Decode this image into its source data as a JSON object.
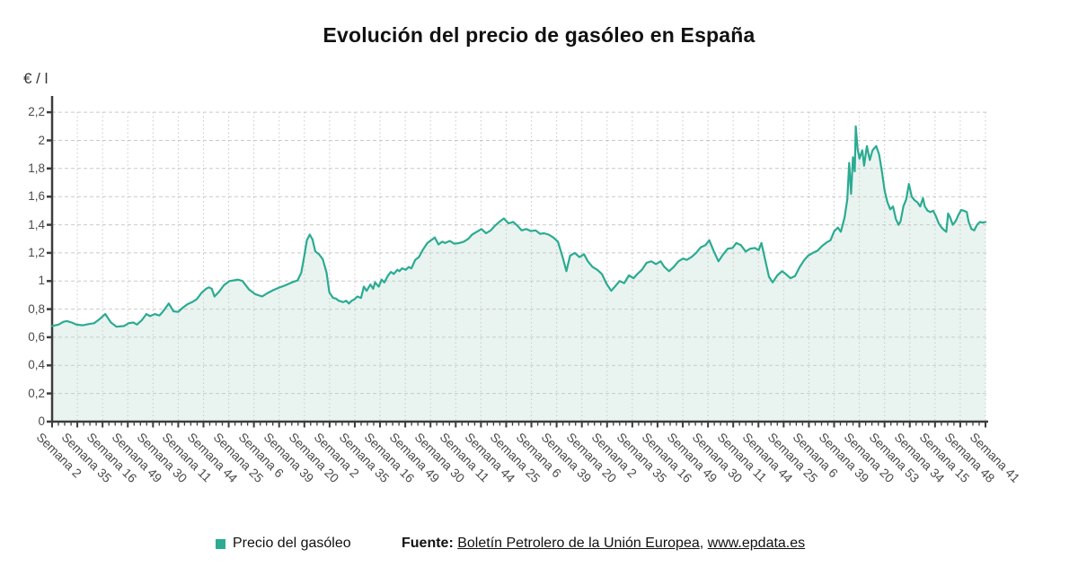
{
  "chart_data": {
    "type": "area",
    "title": "Evolución del precio de gasóleo en España",
    "ylabel": "€ / l",
    "ylim": [
      0,
      2.2
    ],
    "grid": true,
    "legend_position": "bottom",
    "y_ticks": [
      0,
      0.2,
      0.4,
      0.6,
      0.8,
      1,
      1.2,
      1.4,
      1.6,
      1.8,
      2,
      2.2
    ],
    "y_ticklabels": [
      "0",
      "0,2",
      "0,4",
      "0,6",
      "0,8",
      "1",
      "1,2",
      "1,4",
      "1,6",
      "1,8",
      "2",
      "2,2"
    ],
    "x_ticklabels": [
      "Semana 2",
      "Semana 35",
      "Semana 16",
      "Semana 49",
      "Semana 30",
      "Semana 11",
      "Semana 44",
      "Semana 25",
      "Semana 6",
      "Semana 39",
      "Semana 20",
      "Semana 2",
      "Semana 35",
      "Semana 16",
      "Semana 49",
      "Semana 30",
      "Semana 11",
      "Semana 44",
      "Semana 25",
      "Semana 6",
      "Semana 39",
      "Semana 20",
      "Semana 2",
      "Semana 35",
      "Semana 16",
      "Semana 49",
      "Semana 30",
      "Semana 11",
      "Semana 44",
      "Semana 25",
      "Semana 6",
      "Semana 39",
      "Semana 20",
      "Semana 53",
      "Semana 34",
      "Semana 15",
      "Semana 48",
      "Semana 41"
    ],
    "series": [
      {
        "name": "Precio del gasóleo",
        "color": "#2BAB92",
        "fill": "#E9F4F0",
        "points": [
          [
            0.0,
            0.68
          ],
          [
            0.007,
            0.69
          ],
          [
            0.012,
            0.71
          ],
          [
            0.016,
            0.715
          ],
          [
            0.021,
            0.705
          ],
          [
            0.026,
            0.69
          ],
          [
            0.033,
            0.685
          ],
          [
            0.04,
            0.695
          ],
          [
            0.045,
            0.7
          ],
          [
            0.05,
            0.725
          ],
          [
            0.057,
            0.765
          ],
          [
            0.063,
            0.705
          ],
          [
            0.069,
            0.675
          ],
          [
            0.077,
            0.68
          ],
          [
            0.082,
            0.7
          ],
          [
            0.087,
            0.705
          ],
          [
            0.091,
            0.69
          ],
          [
            0.096,
            0.72
          ],
          [
            0.101,
            0.765
          ],
          [
            0.105,
            0.75
          ],
          [
            0.11,
            0.765
          ],
          [
            0.115,
            0.755
          ],
          [
            0.119,
            0.785
          ],
          [
            0.125,
            0.84
          ],
          [
            0.13,
            0.785
          ],
          [
            0.135,
            0.78
          ],
          [
            0.14,
            0.81
          ],
          [
            0.145,
            0.835
          ],
          [
            0.15,
            0.85
          ],
          [
            0.155,
            0.87
          ],
          [
            0.16,
            0.915
          ],
          [
            0.165,
            0.945
          ],
          [
            0.168,
            0.955
          ],
          [
            0.171,
            0.945
          ],
          [
            0.174,
            0.89
          ],
          [
            0.179,
            0.925
          ],
          [
            0.184,
            0.97
          ],
          [
            0.19,
            1.0
          ],
          [
            0.195,
            1.005
          ],
          [
            0.199,
            1.01
          ],
          [
            0.204,
            1.0
          ],
          [
            0.211,
            0.94
          ],
          [
            0.218,
            0.905
          ],
          [
            0.225,
            0.89
          ],
          [
            0.231,
            0.915
          ],
          [
            0.237,
            0.935
          ],
          [
            0.244,
            0.955
          ],
          [
            0.25,
            0.97
          ],
          [
            0.257,
            0.99
          ],
          [
            0.263,
            1.005
          ],
          [
            0.267,
            1.06
          ],
          [
            0.27,
            1.17
          ],
          [
            0.273,
            1.29
          ],
          [
            0.276,
            1.33
          ],
          [
            0.279,
            1.295
          ],
          [
            0.282,
            1.21
          ],
          [
            0.286,
            1.19
          ],
          [
            0.29,
            1.155
          ],
          [
            0.294,
            1.06
          ],
          [
            0.297,
            0.92
          ],
          [
            0.301,
            0.88
          ],
          [
            0.304,
            0.875
          ],
          [
            0.307,
            0.86
          ],
          [
            0.312,
            0.85
          ],
          [
            0.315,
            0.86
          ],
          [
            0.318,
            0.84
          ],
          [
            0.321,
            0.86
          ],
          [
            0.324,
            0.87
          ],
          [
            0.327,
            0.89
          ],
          [
            0.331,
            0.88
          ],
          [
            0.334,
            0.96
          ],
          [
            0.337,
            0.93
          ],
          [
            0.341,
            0.975
          ],
          [
            0.344,
            0.945
          ],
          [
            0.346,
            0.99
          ],
          [
            0.35,
            0.96
          ],
          [
            0.353,
            1.01
          ],
          [
            0.356,
            0.99
          ],
          [
            0.36,
            1.04
          ],
          [
            0.363,
            1.065
          ],
          [
            0.366,
            1.05
          ],
          [
            0.37,
            1.08
          ],
          [
            0.372,
            1.07
          ],
          [
            0.375,
            1.09
          ],
          [
            0.379,
            1.08
          ],
          [
            0.382,
            1.1
          ],
          [
            0.385,
            1.09
          ],
          [
            0.389,
            1.15
          ],
          [
            0.393,
            1.17
          ],
          [
            0.397,
            1.22
          ],
          [
            0.402,
            1.27
          ],
          [
            0.41,
            1.31
          ],
          [
            0.414,
            1.26
          ],
          [
            0.418,
            1.28
          ],
          [
            0.421,
            1.27
          ],
          [
            0.426,
            1.285
          ],
          [
            0.431,
            1.265
          ],
          [
            0.436,
            1.27
          ],
          [
            0.441,
            1.28
          ],
          [
            0.446,
            1.3
          ],
          [
            0.45,
            1.33
          ],
          [
            0.455,
            1.35
          ],
          [
            0.46,
            1.37
          ],
          [
            0.465,
            1.34
          ],
          [
            0.47,
            1.36
          ],
          [
            0.474,
            1.39
          ],
          [
            0.479,
            1.42
          ],
          [
            0.484,
            1.445
          ],
          [
            0.489,
            1.41
          ],
          [
            0.494,
            1.42
          ],
          [
            0.499,
            1.39
          ],
          [
            0.503,
            1.36
          ],
          [
            0.508,
            1.37
          ],
          [
            0.513,
            1.355
          ],
          [
            0.518,
            1.36
          ],
          [
            0.523,
            1.335
          ],
          [
            0.527,
            1.34
          ],
          [
            0.532,
            1.33
          ],
          [
            0.537,
            1.31
          ],
          [
            0.542,
            1.28
          ],
          [
            0.547,
            1.17
          ],
          [
            0.551,
            1.07
          ],
          [
            0.555,
            1.18
          ],
          [
            0.56,
            1.2
          ],
          [
            0.565,
            1.17
          ],
          [
            0.57,
            1.19
          ],
          [
            0.574,
            1.14
          ],
          [
            0.579,
            1.1
          ],
          [
            0.584,
            1.08
          ],
          [
            0.589,
            1.05
          ],
          [
            0.594,
            0.98
          ],
          [
            0.599,
            0.93
          ],
          [
            0.603,
            0.96
          ],
          [
            0.608,
            1.0
          ],
          [
            0.613,
            0.985
          ],
          [
            0.618,
            1.04
          ],
          [
            0.623,
            1.02
          ],
          [
            0.627,
            1.05
          ],
          [
            0.632,
            1.08
          ],
          [
            0.637,
            1.13
          ],
          [
            0.642,
            1.14
          ],
          [
            0.647,
            1.12
          ],
          [
            0.652,
            1.14
          ],
          [
            0.656,
            1.1
          ],
          [
            0.661,
            1.07
          ],
          [
            0.666,
            1.1
          ],
          [
            0.671,
            1.14
          ],
          [
            0.676,
            1.16
          ],
          [
            0.68,
            1.15
          ],
          [
            0.685,
            1.17
          ],
          [
            0.69,
            1.2
          ],
          [
            0.695,
            1.24
          ],
          [
            0.7,
            1.255
          ],
          [
            0.704,
            1.29
          ],
          [
            0.709,
            1.21
          ],
          [
            0.714,
            1.14
          ],
          [
            0.719,
            1.19
          ],
          [
            0.724,
            1.23
          ],
          [
            0.729,
            1.235
          ],
          [
            0.733,
            1.27
          ],
          [
            0.738,
            1.255
          ],
          [
            0.743,
            1.21
          ],
          [
            0.748,
            1.23
          ],
          [
            0.753,
            1.235
          ],
          [
            0.757,
            1.22
          ],
          [
            0.76,
            1.27
          ],
          [
            0.764,
            1.15
          ],
          [
            0.768,
            1.03
          ],
          [
            0.772,
            0.99
          ],
          [
            0.777,
            1.04
          ],
          [
            0.782,
            1.07
          ],
          [
            0.786,
            1.05
          ],
          [
            0.791,
            1.02
          ],
          [
            0.796,
            1.035
          ],
          [
            0.801,
            1.1
          ],
          [
            0.806,
            1.15
          ],
          [
            0.81,
            1.18
          ],
          [
            0.815,
            1.2
          ],
          [
            0.82,
            1.215
          ],
          [
            0.825,
            1.25
          ],
          [
            0.83,
            1.275
          ],
          [
            0.834,
            1.29
          ],
          [
            0.838,
            1.355
          ],
          [
            0.842,
            1.38
          ],
          [
            0.845,
            1.35
          ],
          [
            0.849,
            1.45
          ],
          [
            0.852,
            1.58
          ],
          [
            0.854,
            1.84
          ],
          [
            0.856,
            1.62
          ],
          [
            0.858,
            1.88
          ],
          [
            0.86,
            1.78
          ],
          [
            0.861,
            2.1
          ],
          [
            0.863,
            1.94
          ],
          [
            0.865,
            1.87
          ],
          [
            0.868,
            1.93
          ],
          [
            0.87,
            1.82
          ],
          [
            0.873,
            1.96
          ],
          [
            0.876,
            1.86
          ],
          [
            0.879,
            1.93
          ],
          [
            0.883,
            1.96
          ],
          [
            0.886,
            1.9
          ],
          [
            0.889,
            1.78
          ],
          [
            0.892,
            1.64
          ],
          [
            0.895,
            1.56
          ],
          [
            0.898,
            1.51
          ],
          [
            0.901,
            1.53
          ],
          [
            0.904,
            1.44
          ],
          [
            0.907,
            1.4
          ],
          [
            0.909,
            1.425
          ],
          [
            0.912,
            1.53
          ],
          [
            0.915,
            1.58
          ],
          [
            0.918,
            1.69
          ],
          [
            0.921,
            1.6
          ],
          [
            0.924,
            1.575
          ],
          [
            0.927,
            1.56
          ],
          [
            0.93,
            1.53
          ],
          [
            0.933,
            1.59
          ],
          [
            0.935,
            1.53
          ],
          [
            0.938,
            1.5
          ],
          [
            0.941,
            1.49
          ],
          [
            0.944,
            1.5
          ],
          [
            0.947,
            1.46
          ],
          [
            0.95,
            1.41
          ],
          [
            0.953,
            1.38
          ],
          [
            0.956,
            1.36
          ],
          [
            0.958,
            1.35
          ],
          [
            0.96,
            1.48
          ],
          [
            0.962,
            1.455
          ],
          [
            0.965,
            1.4
          ],
          [
            0.968,
            1.425
          ],
          [
            0.971,
            1.47
          ],
          [
            0.974,
            1.505
          ],
          [
            0.977,
            1.5
          ],
          [
            0.98,
            1.49
          ],
          [
            0.982,
            1.42
          ],
          [
            0.985,
            1.37
          ],
          [
            0.988,
            1.36
          ],
          [
            0.991,
            1.4
          ],
          [
            0.994,
            1.42
          ],
          [
            0.997,
            1.415
          ],
          [
            1.0,
            1.42
          ]
        ]
      }
    ]
  },
  "legend": {
    "label": "Precio del gasóleo"
  },
  "footer": {
    "fuente_label": "Fuente:",
    "source_name": "Boletín Petrolero de la Unión Europea",
    "separator": ", ",
    "site": "www.epdata.es"
  },
  "colors": {
    "accent": "#2BAB92",
    "area_fill": "#E9F4F0",
    "grid": "#c9c9c9",
    "axis": "#3d3d3d",
    "tick_text": "#4a4a4a"
  }
}
